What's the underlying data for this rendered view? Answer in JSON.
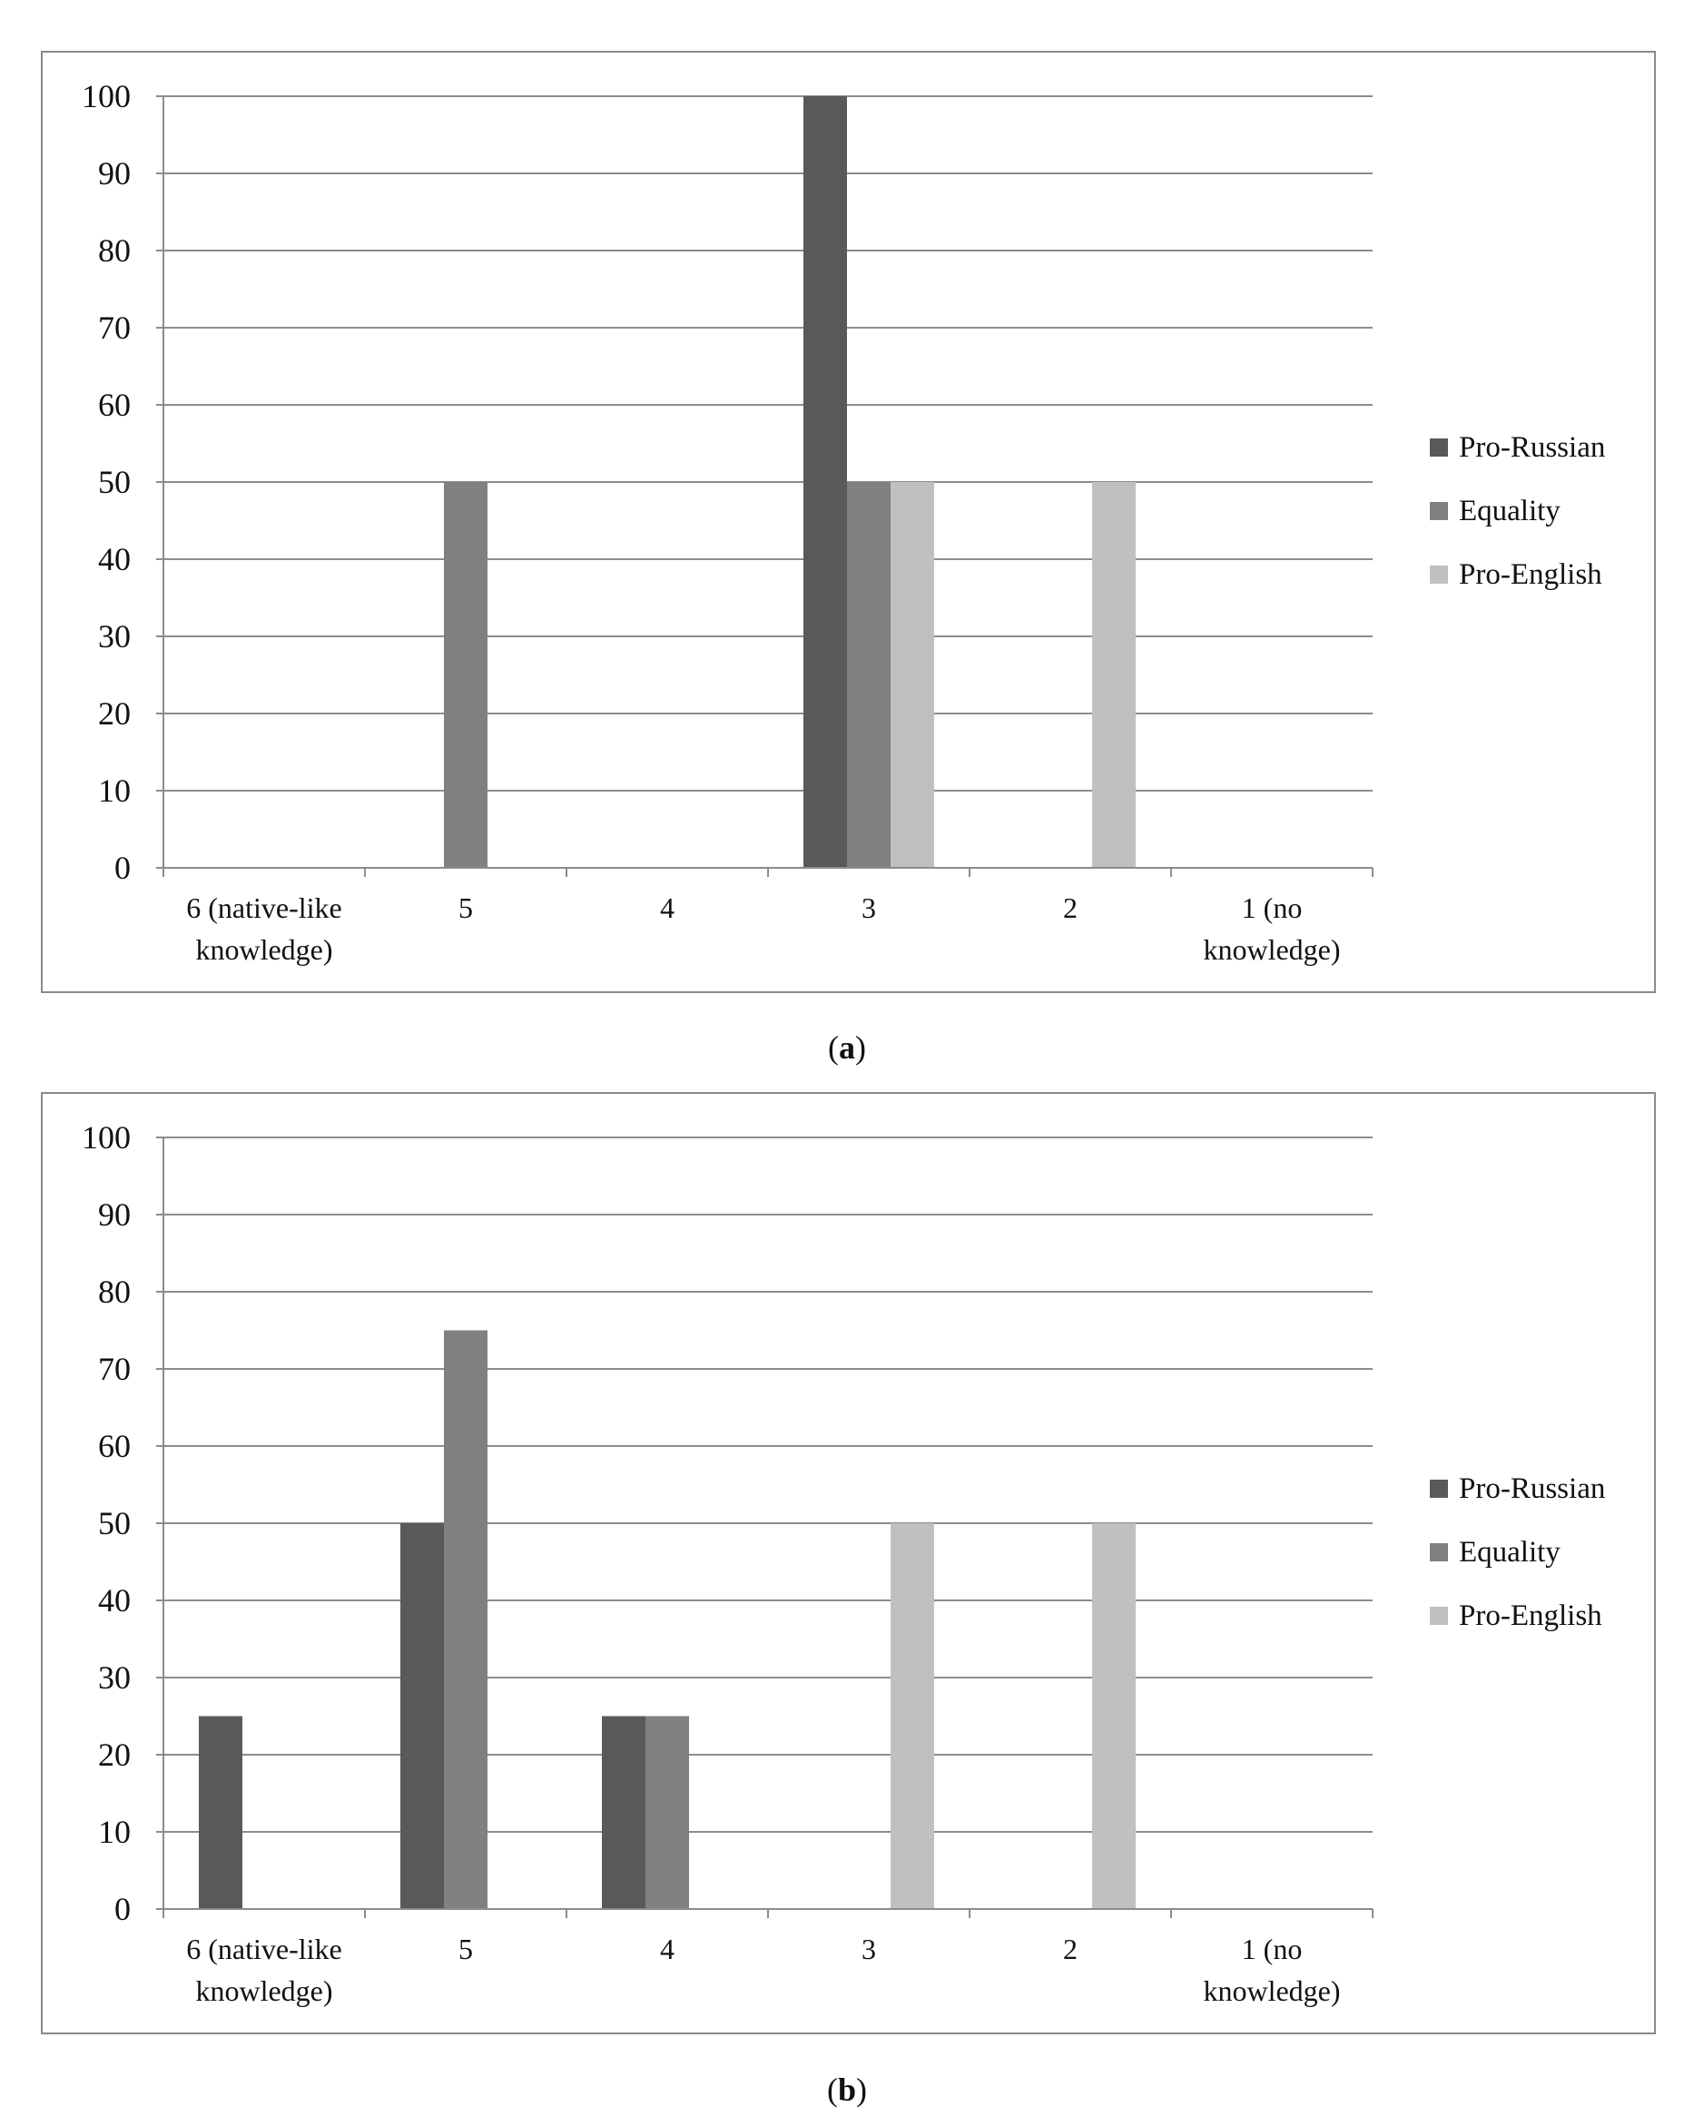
{
  "colors": {
    "Pro-Russian": "#595959",
    "Equality": "#808080",
    "Pro-English": "#c0c0c0",
    "grid": "#8c8c8c"
  },
  "chart_data": [
    {
      "type": "bar",
      "panel": "a",
      "caption": "a",
      "categories": [
        [
          "6 (native-like",
          "knowledge)"
        ],
        [
          "5"
        ],
        [
          "4"
        ],
        [
          "3"
        ],
        [
          "2"
        ],
        [
          "1 (no",
          "knowledge)"
        ]
      ],
      "ylim": [
        0,
        100
      ],
      "yticks": [
        0,
        10,
        20,
        30,
        40,
        50,
        60,
        70,
        80,
        90,
        100
      ],
      "grid": true,
      "legend": "right",
      "series": [
        {
          "name": "Pro-Russian",
          "values": [
            0,
            0,
            0,
            100,
            0,
            0
          ]
        },
        {
          "name": "Equality",
          "values": [
            0,
            50,
            0,
            50,
            0,
            0
          ]
        },
        {
          "name": "Pro-English",
          "values": [
            0,
            0,
            0,
            50,
            50,
            0
          ]
        }
      ]
    },
    {
      "type": "bar",
      "panel": "b",
      "caption": "b",
      "categories": [
        [
          "6 (native-like",
          "knowledge)"
        ],
        [
          "5"
        ],
        [
          "4"
        ],
        [
          "3"
        ],
        [
          "2"
        ],
        [
          "1 (no",
          "knowledge)"
        ]
      ],
      "ylim": [
        0,
        100
      ],
      "yticks": [
        0,
        10,
        20,
        30,
        40,
        50,
        60,
        70,
        80,
        90,
        100
      ],
      "grid": true,
      "legend": "right",
      "series": [
        {
          "name": "Pro-Russian",
          "values": [
            25,
            50,
            25,
            0,
            0,
            0
          ]
        },
        {
          "name": "Equality",
          "values": [
            0,
            75,
            25,
            0,
            0,
            0
          ]
        },
        {
          "name": "Pro-English",
          "values": [
            0,
            0,
            0,
            50,
            50,
            0
          ]
        }
      ]
    }
  ]
}
